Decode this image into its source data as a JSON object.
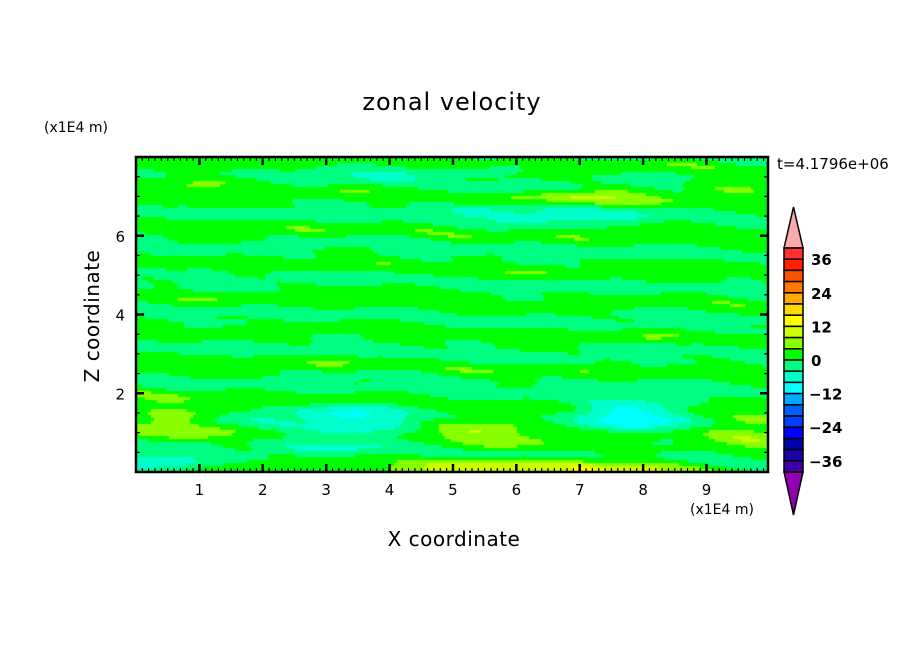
{
  "chart_data": {
    "type": "heatmap",
    "title": "zonal velocity",
    "xlabel": "X coordinate",
    "ylabel": "Z coordinate",
    "x_unit": "(x1E4 m)",
    "y_unit": "(x1E4 m)",
    "annotation": "t=4.1796e+06",
    "xlim": [
      0,
      9.97
    ],
    "ylim": [
      0,
      8
    ],
    "x_ticks": [
      "1",
      "2",
      "3",
      "4",
      "5",
      "6",
      "7",
      "8",
      "9"
    ],
    "y_ticks": [
      "2",
      "4",
      "6"
    ],
    "colorbar": {
      "levels_min": -40,
      "levels_max": 40,
      "level_step": 4,
      "tick_labels": [
        "36",
        "24",
        "12",
        "0",
        "-12",
        "-24",
        "-36"
      ],
      "extend": "both",
      "colors_top_to_bottom": [
        "#ff3030",
        "#ff2000",
        "#ff5000",
        "#ff7800",
        "#ffaa00",
        "#ffd800",
        "#ffff00",
        "#ccff00",
        "#88ff00",
        "#00ff00",
        "#00ff80",
        "#00ffcc",
        "#00ffff",
        "#00aaff",
        "#0060ff",
        "#0040ff",
        "#0000ff",
        "#0000aa",
        "#2000aa",
        "#4000aa"
      ],
      "over_color": "#ffaaaa",
      "under_color": "#9000b0"
    }
  }
}
